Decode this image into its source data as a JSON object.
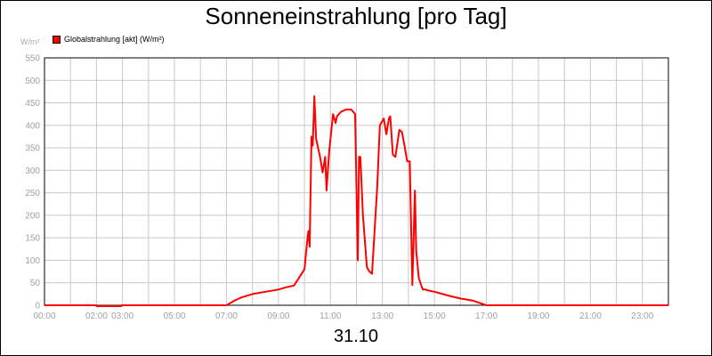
{
  "chart_data": {
    "type": "line",
    "title": "Sonneneinstrahlung [pro Tag]",
    "unit": "W/m²",
    "xlabel": "31.10",
    "ylabel": "",
    "legend": {
      "placement": "top-left",
      "entries": [
        {
          "name": "Globalstrahlung [akt] (W/m²)",
          "color": "#ff0000"
        }
      ]
    },
    "grid": true,
    "xlim": [
      0,
      24
    ],
    "ylim": [
      0,
      550
    ],
    "x_ticks": [
      "00:00",
      "02:00",
      "03:00",
      "05:00",
      "07:00",
      "09:00",
      "11:00",
      "13:00",
      "15:00",
      "17:00",
      "19:00",
      "21:00",
      "23:00"
    ],
    "x_tick_hours": [
      0,
      2,
      3,
      5,
      7,
      9,
      11,
      13,
      15,
      17,
      19,
      21,
      23
    ],
    "y_ticks": [
      0,
      50,
      100,
      150,
      200,
      250,
      300,
      350,
      400,
      450,
      500,
      550
    ],
    "series": [
      {
        "name": "Globalstrahlung [akt] (W/m²)",
        "color": "#ff0000",
        "x": [
          0,
          2.0,
          2.01,
          2.95,
          2.96,
          7.0,
          7.3,
          7.6,
          8.0,
          8.5,
          9.0,
          9.3,
          9.6,
          10.0,
          10.1,
          10.15,
          10.2,
          10.27,
          10.32,
          10.38,
          10.45,
          10.6,
          10.7,
          10.8,
          10.85,
          10.95,
          11.1,
          11.2,
          11.25,
          11.4,
          11.6,
          11.8,
          11.95,
          12.05,
          12.1,
          12.15,
          12.25,
          12.4,
          12.5,
          12.6,
          12.8,
          12.9,
          13.05,
          13.15,
          13.25,
          13.3,
          13.4,
          13.5,
          13.65,
          13.75,
          13.85,
          13.95,
          14.05,
          14.15,
          14.25,
          14.3,
          14.4,
          14.55,
          14.6,
          14.65,
          14.75,
          15.0,
          15.5,
          16.0,
          16.5,
          17.0,
          17.2,
          17.5,
          24
        ],
        "values": [
          0,
          0,
          -2,
          -2,
          0,
          0,
          10,
          18,
          25,
          30,
          35,
          40,
          44,
          80,
          140,
          165,
          130,
          375,
          355,
          465,
          370,
          330,
          295,
          330,
          255,
          340,
          425,
          405,
          420,
          430,
          435,
          435,
          425,
          100,
          330,
          330,
          200,
          85,
          75,
          70,
          265,
          400,
          415,
          380,
          415,
          420,
          335,
          330,
          390,
          385,
          355,
          320,
          320,
          45,
          255,
          120,
          60,
          35,
          35,
          35,
          33,
          30,
          22,
          15,
          10,
          0,
          0,
          0,
          0
        ]
      }
    ]
  }
}
